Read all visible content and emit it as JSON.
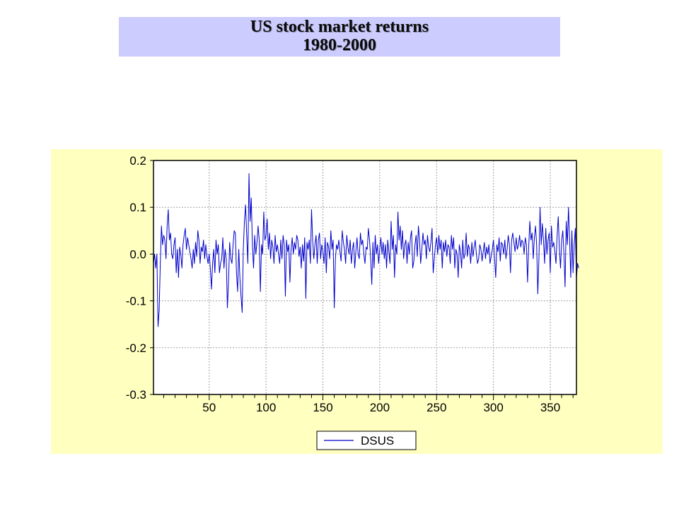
{
  "slide": {
    "title_line1": "US stock market returns",
    "title_line2": "1980-2000",
    "title_bg": "#ccccff",
    "panel_bg": "#ffffc0"
  },
  "chart_data": {
    "type": "line",
    "title": "",
    "xlabel": "",
    "ylabel": "",
    "xlim": [
      1,
      373
    ],
    "ylim": [
      -0.3,
      0.2
    ],
    "grid": true,
    "x_ticks": [
      50,
      100,
      150,
      200,
      250,
      300,
      350
    ],
    "y_ticks": [
      -0.3,
      -0.2,
      -0.1,
      0.0,
      0.1,
      0.2
    ],
    "y_tick_labels": [
      "-0.3",
      "-0.2",
      "-0.1",
      "0.0",
      "0.1",
      "0.2"
    ],
    "legend": {
      "placement": "bottom-center",
      "entries": [
        "DSUS"
      ]
    },
    "series": [
      {
        "name": "DSUS",
        "color": "#0000cc",
        "x_start": 1,
        "values": [
          -0.02,
          0.0,
          -0.03,
          0.0,
          -0.155,
          -0.12,
          -0.02,
          0.06,
          0.02,
          0.04,
          0.03,
          -0.01,
          0.06,
          0.095,
          0.03,
          0.045,
          0.0,
          -0.01,
          0.02,
          0.035,
          -0.04,
          0.01,
          -0.05,
          0.015,
          0.0,
          -0.03,
          0.02,
          0.04,
          0.055,
          0.01,
          0.035,
          0.02,
          0.005,
          -0.01,
          -0.03,
          0.01,
          -0.02,
          0.025,
          -0.005,
          0.05,
          0.03,
          -0.02,
          0.015,
          0.005,
          0.03,
          -0.01,
          0.02,
          -0.005,
          -0.02,
          0.0,
          -0.03,
          -0.075,
          -0.02,
          0.01,
          -0.04,
          0.03,
          0.0,
          0.02,
          -0.04,
          -0.02,
          -0.01,
          0.035,
          -0.03,
          0.01,
          -0.01,
          -0.115,
          -0.06,
          0.025,
          -0.01,
          -0.02,
          0.02,
          0.05,
          0.045,
          -0.04,
          -0.08,
          0.01,
          -0.05,
          -0.09,
          -0.125,
          0.01,
          0.07,
          0.105,
          0.04,
          -0.02,
          0.172,
          0.07,
          0.12,
          0.02,
          -0.03,
          0.04,
          0.0,
          0.025,
          0.06,
          0.03,
          -0.08,
          0.02,
          0.0,
          0.09,
          0.03,
          0.04,
          0.075,
          0.01,
          0.045,
          -0.01,
          0.03,
          0.015,
          -0.02,
          0.04,
          0.005,
          0.02,
          0.0,
          -0.02,
          0.03,
          -0.01,
          0.04,
          0.02,
          -0.09,
          0.03,
          0.005,
          0.02,
          -0.06,
          0.01,
          0.035,
          0.0,
          0.025,
          0.01,
          0.04,
          0.03,
          -0.005,
          0.015,
          -0.03,
          0.02,
          -0.015,
          0.035,
          -0.095,
          0.025,
          0.01,
          0.03,
          -0.02,
          0.095,
          0.03,
          -0.01,
          0.02,
          0.04,
          -0.02,
          0.03,
          0.045,
          -0.01,
          0.02,
          0.005,
          -0.02,
          0.035,
          -0.04,
          0.025,
          0.015,
          -0.01,
          0.05,
          0.01,
          0.03,
          -0.115,
          -0.01,
          0.02,
          0.01,
          0.03,
          0.005,
          -0.015,
          0.05,
          0.025,
          0.01,
          -0.02,
          0.04,
          0.015,
          0.0,
          0.03,
          -0.02,
          0.01,
          0.025,
          -0.03,
          0.005,
          0.035,
          0.0,
          -0.01,
          0.045,
          0.02,
          0.03,
          0.0,
          -0.02,
          0.015,
          0.01,
          0.055,
          0.03,
          -0.01,
          -0.065,
          0.025,
          -0.03,
          0.04,
          0.0,
          0.02,
          -0.02,
          0.01,
          0.035,
          0.0,
          0.025,
          -0.01,
          0.02,
          -0.03,
          0.03,
          0.005,
          -0.02,
          0.07,
          0.01,
          0.04,
          -0.05,
          0.02,
          0.0,
          0.09,
          0.03,
          0.06,
          0.01,
          0.05,
          -0.01,
          0.02,
          0.03,
          -0.02,
          0.025,
          0.0,
          0.035,
          0.05,
          -0.03,
          -0.015,
          0.02,
          0.04,
          -0.005,
          0.06,
          0.03,
          -0.02,
          0.01,
          0.045,
          0.02,
          0.03,
          -0.01,
          0.04,
          0.015,
          0.005,
          0.025,
          0.055,
          -0.04,
          -0.01,
          0.02,
          0.035,
          0.0,
          0.04,
          0.01,
          0.03,
          -0.03,
          0.025,
          0.005,
          0.03,
          -0.005,
          0.02,
          0.015,
          -0.02,
          0.04,
          0.01,
          0.035,
          -0.03,
          0.01,
          0.0,
          -0.05,
          0.02,
          0.005,
          -0.03,
          0.03,
          -0.01,
          0.0,
          0.045,
          -0.005,
          0.02,
          0.01,
          -0.02,
          0.025,
          -0.005,
          0.015,
          0.03,
          0.0,
          -0.02,
          -0.01,
          0.02,
          0.01,
          -0.015,
          0.005,
          0.025,
          -0.01,
          0.015,
          0.0,
          0.02,
          -0.02,
          -0.005,
          0.01,
          0.03,
          -0.01,
          -0.05,
          0.02,
          0.005,
          0.035,
          -0.015,
          0.025,
          0.02,
          0.0,
          0.03,
          -0.01,
          0.01,
          0.04,
          0.02,
          -0.04,
          0.03,
          0.045,
          0.025,
          0.005,
          0.035,
          0.01,
          0.02,
          0.04,
          0.015,
          0.03,
          0.025,
          0.0,
          0.035,
          0.02,
          -0.06,
          0.015,
          0.07,
          0.03,
          0.045,
          -0.01,
          0.035,
          0.06,
          0.02,
          -0.085,
          -0.01,
          0.1,
          0.02,
          0.065,
          0.03,
          -0.02,
          0.055,
          0.0,
          0.03,
          0.045,
          -0.04,
          0.06,
          0.015,
          0.025,
          0.005,
          -0.02,
          0.04,
          0.08,
          0.01,
          -0.03,
          0.03,
          0.05,
          0.0,
          -0.07,
          0.07,
          0.02,
          0.1,
          0.03,
          -0.05,
          0.05,
          -0.04,
          0.02,
          0.055,
          -0.05,
          -0.02,
          -0.03
        ]
      }
    ]
  }
}
